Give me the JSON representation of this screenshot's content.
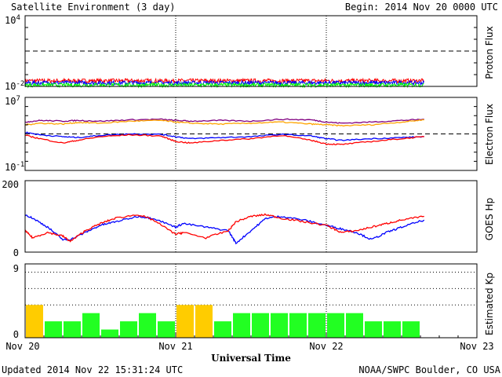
{
  "header": {
    "title": "Satellite Environment (3 day)",
    "begin": "Begin:  2014 Nov 20 0000 UTC"
  },
  "footer": {
    "updated": "Updated 2014 Nov 22 15:31:24 UTC",
    "credit": "NOAA/SWPC Boulder, CO USA"
  },
  "x_axis": {
    "label": "Universal Time",
    "ticks": [
      "Nov 20",
      "Nov 21",
      "Nov 22",
      "Nov 23"
    ]
  },
  "colors": {
    "red": "#ff0000",
    "blue": "#0000ff",
    "green": "#00ff00",
    "orange": "#ffa500",
    "purple": "#800080",
    "kp_yellow": "#ffcc00",
    "kp_green": "#22ff22"
  },
  "chart_data": [
    {
      "type": "line",
      "name": "proton",
      "ylabel": "Proton Flux",
      "yscale": "log",
      "ylim": [
        0.01,
        10000
      ],
      "yticks": [
        {
          "base": "10",
          "exp": "4"
        },
        {
          "base": "10",
          "exp": "-2"
        }
      ],
      "threshold": 10,
      "x_range_days": [
        0,
        3
      ],
      "series": [
        {
          "color": "red",
          "level": 0.03
        },
        {
          "color": "blue",
          "level": 0.02
        },
        {
          "color": "green",
          "level": 0.013
        }
      ],
      "data_end_day": 2.65
    },
    {
      "type": "line",
      "name": "electron",
      "ylabel": "Electron Flux",
      "yscale": "log",
      "ylim": [
        0.1,
        10000000
      ],
      "yticks": [
        {
          "base": "10",
          "exp": "7"
        },
        {
          "base": "10",
          "exp": "-1"
        }
      ],
      "threshold": 1000,
      "x_range_days": [
        0,
        3
      ],
      "series": [
        {
          "color": "purple",
          "x": [
            0,
            0.1,
            0.25,
            0.35,
            0.5,
            0.7,
            0.9,
            1.0,
            1.1,
            1.3,
            1.5,
            1.7,
            1.9,
            2.0,
            2.1,
            2.3,
            2.5,
            2.65
          ],
          "y": [
            20000,
            30000,
            25000,
            30000,
            25000,
            35000,
            40000,
            30000,
            25000,
            30000,
            25000,
            40000,
            35000,
            20000,
            15000,
            20000,
            30000,
            40000
          ]
        },
        {
          "color": "orange",
          "x": [
            0,
            0.1,
            0.25,
            0.35,
            0.5,
            0.7,
            0.9,
            1.0,
            1.1,
            1.3,
            1.5,
            1.7,
            1.9,
            2.0,
            2.1,
            2.3,
            2.5,
            2.65
          ],
          "y": [
            10000,
            15000,
            12000,
            18000,
            15000,
            25000,
            30000,
            20000,
            15000,
            12000,
            15000,
            20000,
            12000,
            10000,
            8000,
            10000,
            20000,
            35000
          ]
        },
        {
          "color": "blue",
          "x": [
            0,
            0.1,
            0.25,
            0.35,
            0.5,
            0.7,
            0.9,
            1.0,
            1.1,
            1.3,
            1.5,
            1.7,
            1.9,
            2.0,
            2.1,
            2.3,
            2.5,
            2.65
          ],
          "y": [
            1500,
            800,
            500,
            400,
            700,
            1000,
            900,
            500,
            300,
            400,
            500,
            900,
            600,
            300,
            200,
            300,
            400,
            500
          ]
        },
        {
          "color": "red",
          "x": [
            0,
            0.1,
            0.25,
            0.35,
            0.5,
            0.7,
            0.9,
            1.0,
            1.1,
            1.3,
            1.5,
            1.7,
            1.9,
            2.0,
            2.1,
            2.3,
            2.5,
            2.65
          ],
          "y": [
            700,
            300,
            100,
            200,
            500,
            800,
            600,
            150,
            100,
            200,
            300,
            700,
            200,
            80,
            70,
            150,
            300,
            500
          ]
        }
      ]
    },
    {
      "type": "line",
      "name": "goes_hp",
      "ylabel": "GOES Hp",
      "ylim": [
        0,
        200
      ],
      "yticks": [
        "200",
        "0"
      ],
      "x_range_days": [
        0,
        3
      ],
      "series": [
        {
          "color": "blue",
          "x": [
            0,
            0.05,
            0.15,
            0.25,
            0.3,
            0.4,
            0.5,
            0.6,
            0.75,
            0.85,
            1.0,
            1.05,
            1.2,
            1.35,
            1.4,
            1.5,
            1.6,
            1.7,
            1.85,
            2.0,
            2.1,
            2.2,
            2.3,
            2.4,
            2.5,
            2.65
          ],
          "y": [
            105,
            95,
            70,
            35,
            35,
            55,
            75,
            85,
            100,
            95,
            70,
            80,
            70,
            60,
            25,
            60,
            95,
            100,
            90,
            75,
            65,
            55,
            35,
            55,
            70,
            90
          ]
        },
        {
          "color": "red",
          "x": [
            0,
            0.05,
            0.15,
            0.25,
            0.3,
            0.4,
            0.5,
            0.6,
            0.75,
            0.85,
            1.0,
            1.05,
            1.2,
            1.35,
            1.4,
            1.5,
            1.6,
            1.7,
            1.85,
            2.0,
            2.1,
            2.2,
            2.3,
            2.4,
            2.5,
            2.65
          ],
          "y": [
            60,
            40,
            55,
            45,
            30,
            60,
            80,
            95,
            105,
            90,
            50,
            55,
            40,
            60,
            85,
            100,
            105,
            95,
            85,
            75,
            55,
            60,
            70,
            80,
            90,
            100
          ]
        }
      ]
    },
    {
      "type": "bar",
      "name": "estimated_kp",
      "ylabel": "Estimated Kp",
      "ylim": [
        0,
        9
      ],
      "yticks": [
        "9",
        "0"
      ],
      "gridlines": [
        4,
        6,
        8
      ],
      "bar_width_days": 0.125,
      "values": [
        4,
        2,
        2,
        3,
        1,
        2,
        3,
        2,
        4,
        4,
        2,
        3,
        3,
        3,
        3,
        3,
        3,
        3,
        2,
        2,
        2
      ],
      "colors": [
        "kp_yellow",
        "kp_green",
        "kp_green",
        "kp_green",
        "kp_green",
        "kp_green",
        "kp_green",
        "kp_green",
        "kp_yellow",
        "kp_yellow",
        "kp_green",
        "kp_green",
        "kp_green",
        "kp_green",
        "kp_green",
        "kp_green",
        "kp_green",
        "kp_green",
        "kp_green",
        "kp_green",
        "kp_green"
      ]
    }
  ]
}
